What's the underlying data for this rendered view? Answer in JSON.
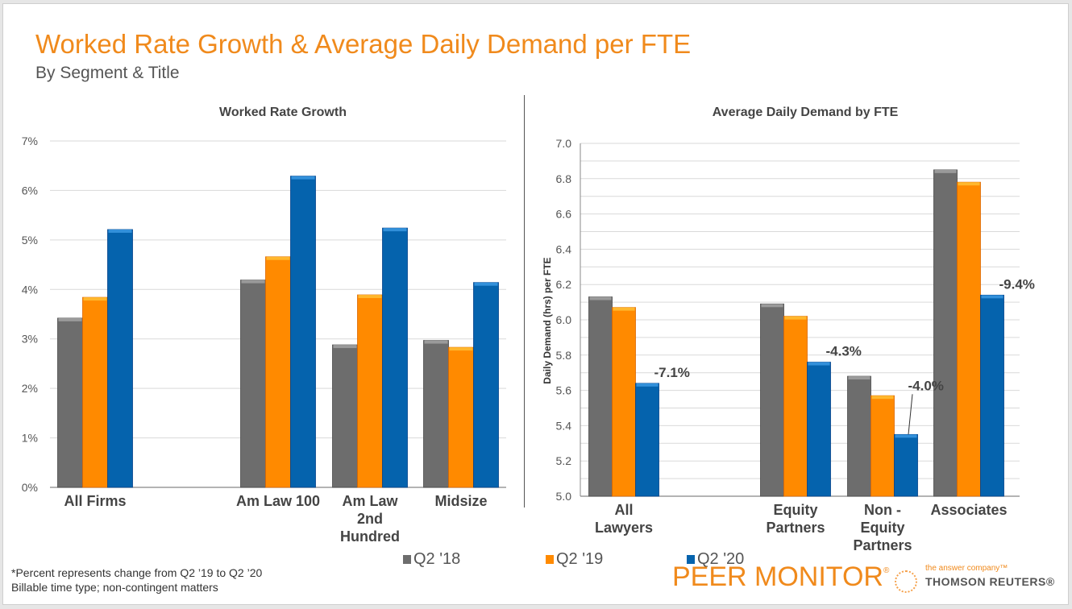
{
  "header": {
    "title": "Worked Rate Growth & Average Daily Demand per FTE",
    "subtitle": "By Segment & Title"
  },
  "series_colors": {
    "Q2 '18": "#6d6d6d",
    "Q2 '19": "#ff8a00",
    "Q2 '20": "#0563ad"
  },
  "legend": [
    {
      "label": "Q2 '18",
      "color": "#6d6d6d"
    },
    {
      "label": "Q2 '19",
      "color": "#ff8a00"
    },
    {
      "label": "Q2 '20",
      "color": "#0563ad"
    }
  ],
  "footnotes": {
    "line1": "*Percent represents change from Q2 ’19 to Q2 ’20",
    "line2": "Billable time type; non-contingent matters"
  },
  "branding": {
    "product": "PEER MONITOR",
    "registered": "®",
    "tagline": "the answer company™",
    "company": "THOMSON REUTERS®"
  },
  "chart_data": [
    {
      "type": "bar",
      "title": "Worked Rate Growth",
      "xlabel": "",
      "ylabel": "",
      "ylim": [
        0,
        7
      ],
      "yticks": [
        "0%",
        "1%",
        "2%",
        "3%",
        "4%",
        "5%",
        "6%",
        "7%"
      ],
      "grid": true,
      "legend": "bottom",
      "categories": [
        [
          "All Firms"
        ],
        [
          ""
        ],
        [
          "Am Law 100"
        ],
        [
          "Am Law",
          "2nd",
          "Hundred"
        ],
        [
          "Midsize"
        ]
      ],
      "series": [
        {
          "name": "Q2 '18",
          "values": [
            3.42,
            null,
            4.19,
            2.88,
            2.97
          ]
        },
        {
          "name": "Q2 '19",
          "values": [
            3.84,
            null,
            4.66,
            3.89,
            2.83
          ]
        },
        {
          "name": "Q2 '20",
          "values": [
            5.21,
            null,
            6.29,
            5.24,
            4.14
          ]
        }
      ],
      "annotations": []
    },
    {
      "type": "bar",
      "title": "Average Daily Demand by FTE",
      "xlabel": "",
      "ylabel": "Daily Demand (hrs) per FTE",
      "ylim": [
        5.0,
        7.0
      ],
      "yticks": [
        "5.0",
        "5.2",
        "5.4",
        "5.6",
        "5.8",
        "6.0",
        "6.2",
        "6.4",
        "6.6",
        "6.8",
        "7.0"
      ],
      "grid": true,
      "legend": "bottom",
      "categories": [
        [
          "All",
          "Lawyers"
        ],
        [
          ""
        ],
        [
          "Equity",
          "Partners"
        ],
        [
          "Non -",
          "Equity",
          "Partners"
        ],
        [
          "Associates"
        ]
      ],
      "series": [
        {
          "name": "Q2 '18",
          "values": [
            6.13,
            null,
            6.09,
            5.68,
            6.85
          ]
        },
        {
          "name": "Q2 '19",
          "values": [
            6.07,
            null,
            6.02,
            5.57,
            6.78
          ]
        },
        {
          "name": "Q2 '20",
          "values": [
            5.64,
            null,
            5.76,
            5.35,
            6.14
          ]
        }
      ],
      "annotations": [
        {
          "category": 0,
          "series": 2,
          "text": "-7.1%"
        },
        {
          "category": 2,
          "series": 2,
          "text": "-4.3%"
        },
        {
          "category": 3,
          "series": 2,
          "text": "-4.0%",
          "leader_line": true
        },
        {
          "category": 4,
          "series": 2,
          "text": "-9.4%"
        }
      ]
    }
  ]
}
